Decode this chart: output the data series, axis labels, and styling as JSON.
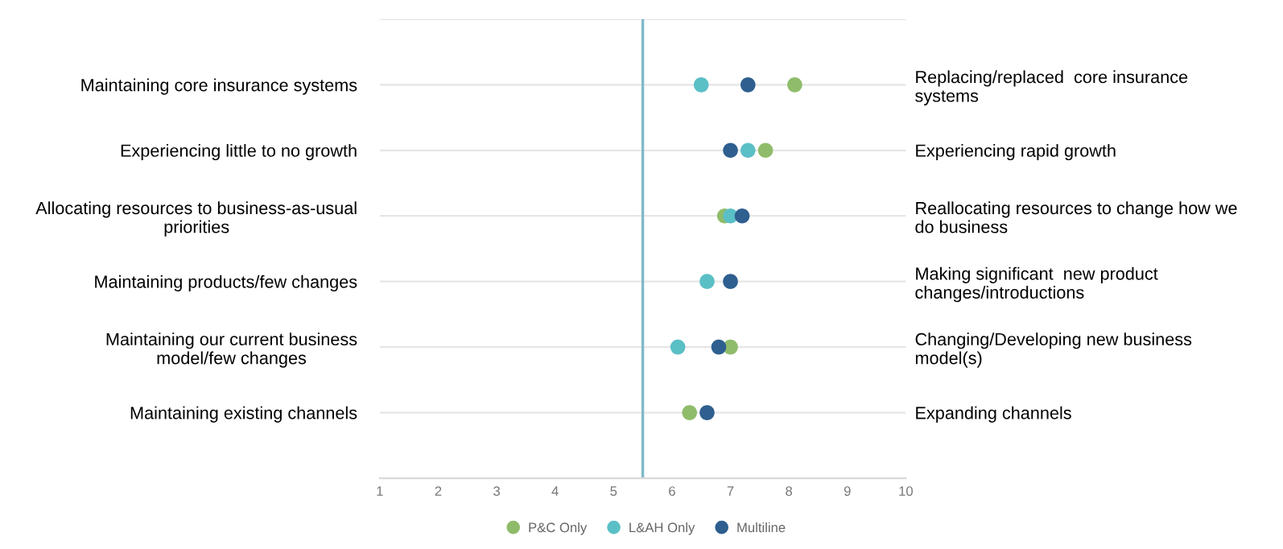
{
  "chart_data": {
    "type": "scatter",
    "orientation": "horizontal",
    "categories": [
      "Maintaining core insurance systems",
      "Experiencing little to no growth",
      "Allocating resources to business-as-usual\npriorities",
      "Maintaining products/few changes",
      "Maintaining our current business\nmodel/few changes",
      "Maintaining existing channels"
    ],
    "y2_categories": [
      "Replacing/replaced  core insurance\nsystems",
      "Experiencing rapid growth",
      "Reallocating resources to change how we\ndo business",
      "Making significant  new product\nchanges/introductions",
      "Changing/Developing new business\nmodel(s)",
      "Expanding channels"
    ],
    "series": [
      {
        "name": "P&C Only",
        "color": "#8fbc6a",
        "values": [
          8.1,
          7.6,
          6.9,
          null,
          7.0,
          6.3
        ]
      },
      {
        "name": "L&AH Only",
        "color": "#5bbfc6",
        "values": [
          6.5,
          7.3,
          7.0,
          6.6,
          6.1,
          null
        ]
      },
      {
        "name": "Multiline",
        "color": "#2e5f8f",
        "values": [
          7.3,
          7.0,
          7.2,
          7.0,
          6.8,
          6.6
        ]
      }
    ],
    "xlim": [
      1,
      10
    ],
    "xticks": [
      1,
      2,
      3,
      4,
      5,
      6,
      7,
      8,
      9,
      10
    ],
    "ref_lines": [
      {
        "axis": "x",
        "value": 5.5,
        "color": "#7fb8c8"
      }
    ],
    "grid": "y",
    "legend": "bottom",
    "marker": "circle"
  }
}
